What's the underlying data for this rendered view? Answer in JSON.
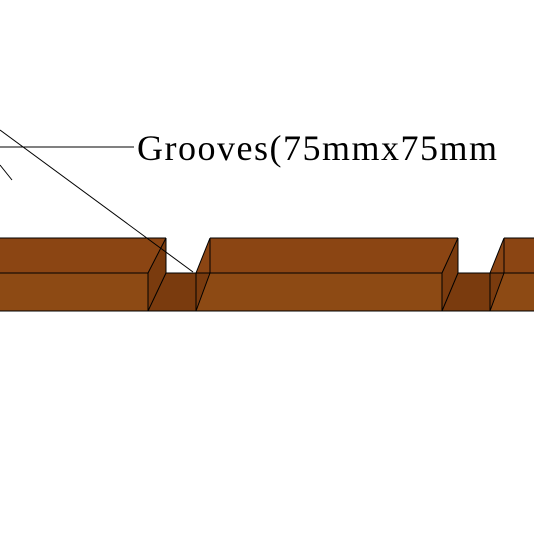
{
  "annotation": {
    "label": "Grooves(75mmx75mm"
  },
  "colors": {
    "wood_top": "#8b4513",
    "wood_front": "#8d4a14",
    "groove_face": "#7a3b0e",
    "outline": "#000000",
    "leader": "#000000",
    "background": "#ffffff"
  }
}
